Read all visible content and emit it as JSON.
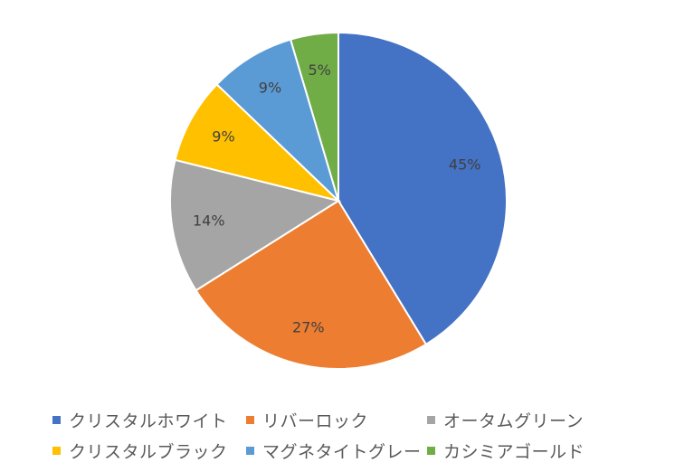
{
  "chart_data": {
    "type": "pie",
    "title": "",
    "series": [
      {
        "values": [
          45,
          27,
          14,
          9,
          9,
          5
        ],
        "labels": [
          "45%",
          "27%",
          "14%",
          "9%",
          "9%",
          "5%"
        ]
      }
    ],
    "categories": [
      "クリスタルホワイト",
      "リバーロック",
      "オータムグリーン",
      "クリスタルブラック",
      "マグネタイトグレー",
      "カシミアゴールド"
    ],
    "colors": [
      "#4472C4",
      "#ED7D31",
      "#A5A5A5",
      "#FFC000",
      "#5B9BD5",
      "#70AD47"
    ],
    "start": "12 o'clock",
    "direction": "clockwise",
    "legend_position": "bottom"
  }
}
